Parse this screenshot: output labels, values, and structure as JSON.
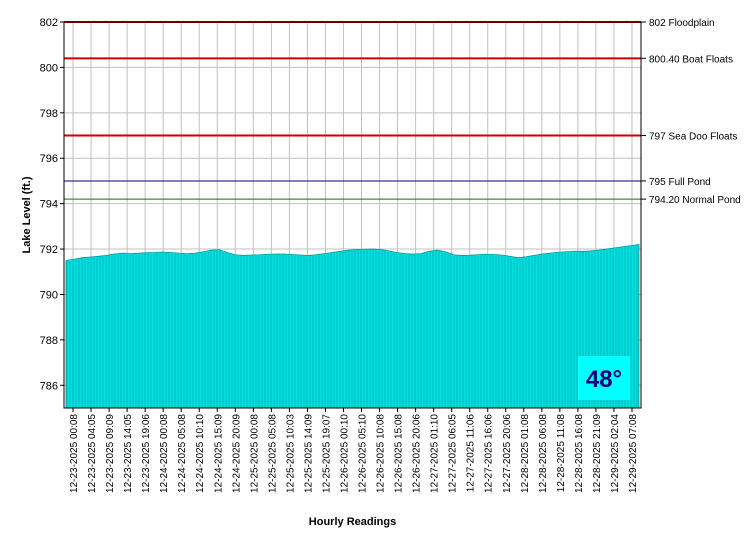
{
  "chart_data": {
    "type": "area",
    "xlabel": "Hourly Readings",
    "ylabel": "Lake Level (ft.)",
    "ylim": [
      785,
      802
    ],
    "yticks": [
      786,
      788,
      790,
      792,
      794,
      796,
      798,
      800,
      802
    ],
    "grid": true,
    "x_tick_labels": [
      "12-23-2025 00:08",
      "12-23-2025 04:05",
      "12-23-2025 09:09",
      "12-23-2025 14:05",
      "12-23-2025 19:06",
      "12-24-2025 00:08",
      "12-24-2025 05:08",
      "12-24-2025 10:10",
      "12-24-2025 15:09",
      "12-24-2025 20:09",
      "12-25-2025 00:08",
      "12-25-2025 05:08",
      "12-25-2025 10:03",
      "12-25-2025 14:09",
      "12-25-2025 19:07",
      "12-26-2025 00:10",
      "12-26-2025 05:10",
      "12-26-2025 10:08",
      "12-26-2025 15:08",
      "12-26-2025 20:06",
      "12-27-2025 01:10",
      "12-27-2025 06:05",
      "12-27-2025 11:06",
      "12-27-2025 16:06",
      "12-27-2025 20:06",
      "12-28-2025 01:08",
      "12-28-2025 06:08",
      "12-28-2025 11:08",
      "12-28-2025 16:08",
      "12-28-2025 21:09",
      "12-29-2025 02:04",
      "12-29-2025 07:08"
    ],
    "series": [
      {
        "color": "#00e0e0",
        "values": [
          791.5,
          791.55,
          791.62,
          791.65,
          791.68,
          791.72,
          791.78,
          791.82,
          791.8,
          791.82,
          791.84,
          791.85,
          791.87,
          791.85,
          791.82,
          791.8,
          791.82,
          791.88,
          791.95,
          791.97,
          791.85,
          791.75,
          791.72,
          791.74,
          791.75,
          791.77,
          791.78,
          791.78,
          791.76,
          791.74,
          791.72,
          791.75,
          791.8,
          791.85,
          791.9,
          791.95,
          791.98,
          791.99,
          792.0,
          791.98,
          791.92,
          791.85,
          791.8,
          791.78,
          791.8,
          791.9,
          791.95,
          791.88,
          791.75,
          791.72,
          791.73,
          791.75,
          791.77,
          791.76,
          791.74,
          791.68,
          791.62,
          791.66,
          791.72,
          791.78,
          791.82,
          791.86,
          791.88,
          791.9,
          791.9,
          791.92,
          791.95,
          792.0,
          792.05,
          792.1,
          792.15,
          792.2
        ]
      }
    ],
    "reference_lines": [
      {
        "value": 802,
        "label": "802 Floodplain",
        "color": "#cc0000"
      },
      {
        "value": 800.4,
        "label": "800.40 Boat Floats",
        "color": "#cc0000"
      },
      {
        "value": 797,
        "label": "797 Sea Doo Floats",
        "color": "#cc0000"
      },
      {
        "value": 795,
        "label": "795 Full Pond",
        "color": "#000080"
      },
      {
        "value": 794.2,
        "label": "794.20 Normal Pond",
        "color": "#008000"
      }
    ],
    "temperature": {
      "label": "48°",
      "text_color": "#000080",
      "background": "#00ffff"
    }
  }
}
